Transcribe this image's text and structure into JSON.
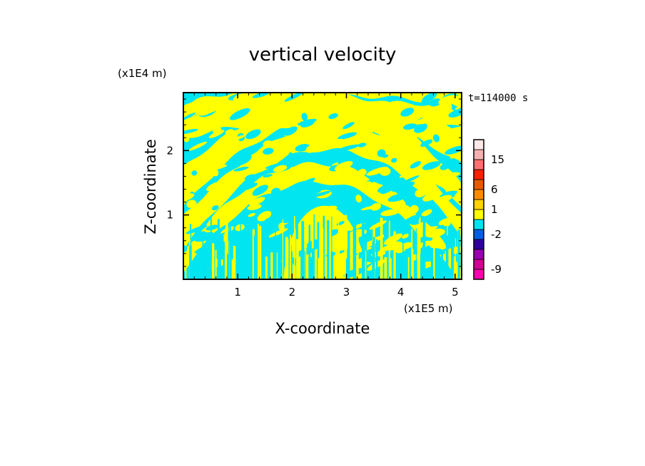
{
  "chart_data": {
    "type": "heatmap",
    "title": "vertical velocity",
    "xlabel": "X-coordinate",
    "ylabel": "Z-coordinate",
    "x_scale_label": "(x1E5 m)",
    "y_scale_label": "(x1E4 m)",
    "time_label": "t=114000 s",
    "xlim": [
      0,
      5.12
    ],
    "ylim": [
      0,
      2.9
    ],
    "x_ticks": [
      1,
      2,
      3,
      4,
      5
    ],
    "y_ticks": [
      1,
      2
    ],
    "dominant_levels": [
      {
        "range": "0 to 1",
        "color": "#ffff00"
      },
      {
        "range": "-1 to 0",
        "color": "#00e5f0"
      }
    ],
    "colorbar": {
      "colors": [
        "#ff00b0",
        "#d20096",
        "#9a00b0",
        "#30009a",
        "#0060e0",
        "#00e5f0",
        "#ffff00",
        "#ffd200",
        "#ff8c00",
        "#e85a00",
        "#ff2000",
        "#ff7070",
        "#f7b0b0",
        "#ffe8e8"
      ],
      "tick_labels": [
        "-9",
        "-2",
        "1",
        "6",
        "15"
      ],
      "tick_bands": [
        1,
        4.5,
        7,
        9,
        12
      ]
    }
  }
}
